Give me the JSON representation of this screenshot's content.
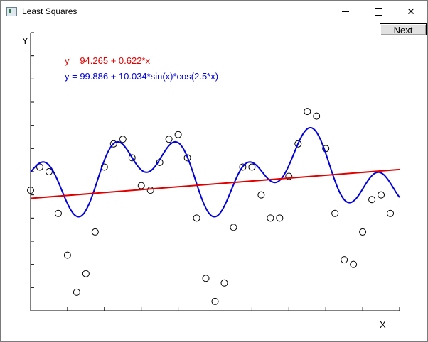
{
  "window": {
    "title": "Least Squares",
    "controls": {
      "minimize": "—",
      "maximize": "☐",
      "close": "✕"
    }
  },
  "toolbar": {
    "next_label": "Next"
  },
  "chart_data": {
    "type": "scatter",
    "xlabel": "X",
    "ylabel": "Y",
    "xlim": [
      0,
      10
    ],
    "ylim": [
      70,
      130
    ],
    "x_ticks": [
      0,
      1,
      2,
      3,
      4,
      5,
      6,
      7,
      8,
      9,
      10
    ],
    "y_ticks": [
      70,
      75,
      80,
      85,
      90,
      95,
      100,
      105,
      110,
      115,
      120,
      125,
      130
    ],
    "series": [
      {
        "label": "y = 94.265 + 0.622*x",
        "kind": "linear-fit",
        "color": "#e00000",
        "intercept": 94.265,
        "slope": 0.622
      },
      {
        "label": "y = 99.886 + 10.034*sin(x)*cos(2.5*x)",
        "kind": "model-fit",
        "color": "#0000e0",
        "a": 99.886,
        "b": 10.034,
        "freq_cos": 2.5
      }
    ],
    "points": {
      "color": "#000000",
      "x": [
        0.0,
        0.25,
        0.5,
        0.75,
        1.0,
        1.25,
        1.5,
        1.75,
        2.0,
        2.25,
        2.5,
        2.75,
        3.0,
        3.25,
        3.5,
        3.75,
        4.0,
        4.25,
        4.5,
        4.75,
        5.0,
        5.25,
        5.5,
        5.75,
        6.0,
        6.25,
        6.5,
        6.75,
        7.0,
        7.25,
        7.5,
        7.75,
        8.0,
        8.25,
        8.5,
        8.75,
        9.0,
        9.25,
        9.5,
        9.75
      ],
      "y": [
        96.0,
        101.0,
        100.0,
        91.0,
        82.0,
        74.0,
        78.0,
        87.0,
        101.0,
        106.0,
        107.0,
        103.0,
        97.0,
        96.0,
        102.0,
        107.0,
        108.0,
        103.0,
        90.0,
        77.0,
        72.0,
        76.0,
        88.0,
        101.0,
        101.0,
        95.0,
        90.0,
        90.0,
        99.0,
        106.0,
        113.0,
        112.0,
        105.0,
        91.0,
        81.0,
        80.0,
        87.0,
        94.0,
        95.0,
        91.0
      ]
    }
  }
}
